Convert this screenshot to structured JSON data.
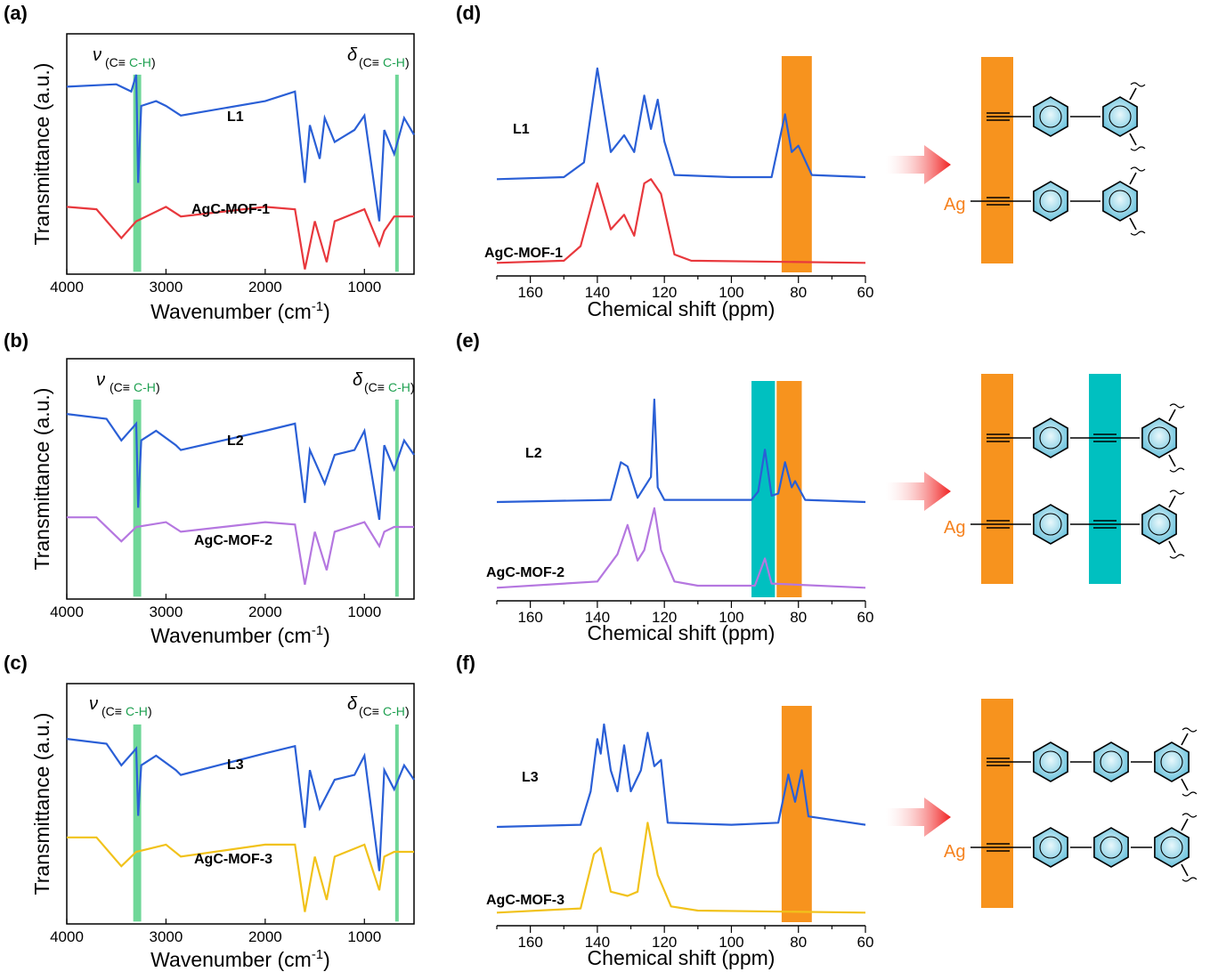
{
  "panels": {
    "a": "(a)",
    "b": "(b)",
    "c": "(c)",
    "d": "(d)",
    "e": "(e)",
    "f": "(f)"
  },
  "ir_axis": {
    "xlabel": "Wavenumber (cm",
    "xlabel_sup": "-1",
    "xlabel_end": ")",
    "ylabel": "Transmittance (a.u.)",
    "ticks": [
      "4000",
      "3000",
      "2000",
      "1000"
    ]
  },
  "nmr_axis": {
    "xlabel": "Chemical shift (ppm)",
    "ticks": [
      "160",
      "140",
      "120",
      "100",
      "80",
      "60"
    ]
  },
  "annotations": {
    "nu": "ν",
    "delta": "δ",
    "sub_pre": "(C≡",
    "sub_green": "C-H",
    "sub_post": ")",
    "ag": "Ag"
  },
  "colors": {
    "ligand": "#2a5fd6",
    "mof1": "#e8383d",
    "mof2": "#b577e0",
    "mof3": "#f1c21b",
    "ir_band": "#5fd38d",
    "orange_band": "#f7931e",
    "cyan_band": "#00c0c0",
    "arrow": "#f03030",
    "ring_fill": "#8fd0e4"
  },
  "chart_data": [
    {
      "type": "line",
      "panel": "(a)",
      "xlabel": "Wavenumber (cm-1)",
      "ylabel": "Transmittance (a.u.)",
      "xlim": [
        4000,
        500
      ],
      "x_reversed": true,
      "highlight_bands": [
        [
          3330,
          3250
        ],
        [
          690,
          660
        ]
      ],
      "series": [
        {
          "name": "L1",
          "points": [
            [
              4000,
              0.78
            ],
            [
              3500,
              0.79
            ],
            [
              3350,
              0.76
            ],
            [
              3300,
              0.83
            ],
            [
              3280,
              0.38
            ],
            [
              3250,
              0.7
            ],
            [
              3100,
              0.72
            ],
            [
              3000,
              0.7
            ],
            [
              2850,
              0.66
            ],
            [
              2000,
              0.72
            ],
            [
              1700,
              0.76
            ],
            [
              1600,
              0.38
            ],
            [
              1550,
              0.62
            ],
            [
              1450,
              0.48
            ],
            [
              1400,
              0.65
            ],
            [
              1300,
              0.55
            ],
            [
              1100,
              0.6
            ],
            [
              1000,
              0.66
            ],
            [
              850,
              0.22
            ],
            [
              800,
              0.6
            ],
            [
              700,
              0.5
            ],
            [
              600,
              0.65
            ],
            [
              500,
              0.58
            ]
          ]
        },
        {
          "name": "AgC-MOF-1",
          "points": [
            [
              4000,
              0.28
            ],
            [
              3700,
              0.27
            ],
            [
              3450,
              0.15
            ],
            [
              3300,
              0.22
            ],
            [
              3000,
              0.28
            ],
            [
              2850,
              0.24
            ],
            [
              2000,
              0.28
            ],
            [
              1700,
              0.27
            ],
            [
              1600,
              0.02
            ],
            [
              1500,
              0.22
            ],
            [
              1380,
              0.05
            ],
            [
              1300,
              0.22
            ],
            [
              1000,
              0.27
            ],
            [
              850,
              0.12
            ],
            [
              800,
              0.18
            ],
            [
              700,
              0.24
            ],
            [
              500,
              0.24
            ]
          ]
        }
      ]
    },
    {
      "type": "line",
      "panel": "(b)",
      "xlabel": "Wavenumber (cm-1)",
      "ylabel": "Transmittance (a.u.)",
      "xlim": [
        4000,
        500
      ],
      "x_reversed": true,
      "highlight_bands": [
        [
          3330,
          3250
        ],
        [
          690,
          660
        ]
      ],
      "series": [
        {
          "name": "L2",
          "points": [
            [
              4000,
              0.77
            ],
            [
              3600,
              0.75
            ],
            [
              3450,
              0.66
            ],
            [
              3300,
              0.73
            ],
            [
              3280,
              0.38
            ],
            [
              3250,
              0.66
            ],
            [
              3100,
              0.7
            ],
            [
              2900,
              0.64
            ],
            [
              2850,
              0.62
            ],
            [
              2000,
              0.7
            ],
            [
              1700,
              0.73
            ],
            [
              1600,
              0.4
            ],
            [
              1550,
              0.62
            ],
            [
              1400,
              0.48
            ],
            [
              1300,
              0.6
            ],
            [
              1100,
              0.62
            ],
            [
              1000,
              0.7
            ],
            [
              850,
              0.33
            ],
            [
              800,
              0.64
            ],
            [
              700,
              0.54
            ],
            [
              600,
              0.66
            ],
            [
              500,
              0.6
            ]
          ]
        },
        {
          "name": "AgC-MOF-2",
          "points": [
            [
              4000,
              0.34
            ],
            [
              3700,
              0.34
            ],
            [
              3450,
              0.24
            ],
            [
              3300,
              0.3
            ],
            [
              3000,
              0.32
            ],
            [
              2850,
              0.28
            ],
            [
              2000,
              0.32
            ],
            [
              1700,
              0.31
            ],
            [
              1600,
              0.06
            ],
            [
              1500,
              0.28
            ],
            [
              1380,
              0.12
            ],
            [
              1300,
              0.28
            ],
            [
              1000,
              0.32
            ],
            [
              850,
              0.22
            ],
            [
              800,
              0.28
            ],
            [
              700,
              0.3
            ],
            [
              500,
              0.3
            ]
          ]
        }
      ]
    },
    {
      "type": "line",
      "panel": "(c)",
      "xlabel": "Wavenumber (cm-1)",
      "ylabel": "Transmittance (a.u.)",
      "xlim": [
        4000,
        500
      ],
      "x_reversed": true,
      "highlight_bands": [
        [
          3330,
          3250
        ],
        [
          690,
          660
        ]
      ],
      "series": [
        {
          "name": "L3",
          "points": [
            [
              4000,
              0.77
            ],
            [
              3600,
              0.75
            ],
            [
              3450,
              0.66
            ],
            [
              3300,
              0.73
            ],
            [
              3280,
              0.45
            ],
            [
              3250,
              0.66
            ],
            [
              3100,
              0.7
            ],
            [
              2900,
              0.64
            ],
            [
              2850,
              0.62
            ],
            [
              2000,
              0.71
            ],
            [
              1700,
              0.74
            ],
            [
              1600,
              0.4
            ],
            [
              1550,
              0.64
            ],
            [
              1450,
              0.48
            ],
            [
              1300,
              0.6
            ],
            [
              1100,
              0.62
            ],
            [
              1000,
              0.7
            ],
            [
              850,
              0.22
            ],
            [
              800,
              0.64
            ],
            [
              700,
              0.56
            ],
            [
              600,
              0.66
            ],
            [
              500,
              0.6
            ]
          ]
        },
        {
          "name": "AgC-MOF-3",
          "points": [
            [
              4000,
              0.36
            ],
            [
              3700,
              0.36
            ],
            [
              3450,
              0.24
            ],
            [
              3300,
              0.3
            ],
            [
              3000,
              0.33
            ],
            [
              2850,
              0.28
            ],
            [
              2000,
              0.33
            ],
            [
              1700,
              0.33
            ],
            [
              1600,
              0.05
            ],
            [
              1500,
              0.28
            ],
            [
              1380,
              0.1
            ],
            [
              1300,
              0.28
            ],
            [
              1000,
              0.33
            ],
            [
              850,
              0.14
            ],
            [
              800,
              0.28
            ],
            [
              700,
              0.3
            ],
            [
              500,
              0.3
            ]
          ]
        }
      ]
    },
    {
      "type": "line",
      "panel": "(d)",
      "xlabel": "Chemical shift (ppm)",
      "xlim": [
        170,
        60
      ],
      "x_reversed": true,
      "highlight_bands": [
        [
          85,
          76
        ]
      ],
      "series": [
        {
          "name": "L1",
          "points": [
            [
              170,
              0.42
            ],
            [
              150,
              0.43
            ],
            [
              144,
              0.5
            ],
            [
              140,
              0.95
            ],
            [
              136,
              0.55
            ],
            [
              132,
              0.63
            ],
            [
              129,
              0.55
            ],
            [
              126,
              0.82
            ],
            [
              124,
              0.66
            ],
            [
              122,
              0.8
            ],
            [
              120,
              0.6
            ],
            [
              117,
              0.44
            ],
            [
              100,
              0.43
            ],
            [
              88,
              0.43
            ],
            [
              84,
              0.73
            ],
            [
              82,
              0.55
            ],
            [
              80,
              0.58
            ],
            [
              76,
              0.44
            ],
            [
              60,
              0.43
            ]
          ]
        },
        {
          "name": "AgC-MOF-1",
          "points": [
            [
              170,
              0.02
            ],
            [
              150,
              0.03
            ],
            [
              145,
              0.1
            ],
            [
              140,
              0.4
            ],
            [
              136,
              0.18
            ],
            [
              132,
              0.25
            ],
            [
              129,
              0.15
            ],
            [
              126,
              0.4
            ],
            [
              124,
              0.42
            ],
            [
              121,
              0.35
            ],
            [
              117,
              0.06
            ],
            [
              112,
              0.03
            ],
            [
              60,
              0.02
            ]
          ]
        }
      ]
    },
    {
      "type": "line",
      "panel": "(e)",
      "xlabel": "Chemical shift (ppm)",
      "xlim": [
        170,
        60
      ],
      "x_reversed": true,
      "highlight_bands": [
        [
          94,
          87
        ],
        [
          86.5,
          79
        ]
      ],
      "series": [
        {
          "name": "L2",
          "points": [
            [
              170,
              0.43
            ],
            [
              136,
              0.44
            ],
            [
              133,
              0.62
            ],
            [
              131,
              0.6
            ],
            [
              128,
              0.45
            ],
            [
              124,
              0.55
            ],
            [
              123,
              0.92
            ],
            [
              122,
              0.5
            ],
            [
              120,
              0.44
            ],
            [
              94,
              0.44
            ],
            [
              92,
              0.48
            ],
            [
              90,
              0.68
            ],
            [
              88,
              0.46
            ],
            [
              86,
              0.47
            ],
            [
              84,
              0.62
            ],
            [
              82,
              0.5
            ],
            [
              81,
              0.53
            ],
            [
              78,
              0.44
            ],
            [
              60,
              0.43
            ]
          ]
        },
        {
          "name": "AgC-MOF-2",
          "points": [
            [
              170,
              0.02
            ],
            [
              140,
              0.05
            ],
            [
              134,
              0.18
            ],
            [
              131,
              0.32
            ],
            [
              128,
              0.15
            ],
            [
              126,
              0.2
            ],
            [
              123,
              0.4
            ],
            [
              121,
              0.2
            ],
            [
              117,
              0.05
            ],
            [
              110,
              0.03
            ],
            [
              93,
              0.03
            ],
            [
              90,
              0.16
            ],
            [
              88,
              0.04
            ],
            [
              60,
              0.02
            ]
          ]
        }
      ]
    },
    {
      "type": "line",
      "panel": "(f)",
      "xlabel": "Chemical shift (ppm)",
      "xlim": [
        170,
        60
      ],
      "x_reversed": true,
      "highlight_bands": [
        [
          85,
          76
        ]
      ],
      "series": [
        {
          "name": "L3",
          "points": [
            [
              170,
              0.43
            ],
            [
              145,
              0.44
            ],
            [
              142,
              0.6
            ],
            [
              140,
              0.85
            ],
            [
              139,
              0.78
            ],
            [
              138,
              0.92
            ],
            [
              136,
              0.7
            ],
            [
              134,
              0.6
            ],
            [
              132,
              0.82
            ],
            [
              130,
              0.6
            ],
            [
              127,
              0.7
            ],
            [
              125,
              0.88
            ],
            [
              123,
              0.72
            ],
            [
              121,
              0.75
            ],
            [
              119,
              0.45
            ],
            [
              100,
              0.44
            ],
            [
              86,
              0.45
            ],
            [
              83,
              0.68
            ],
            [
              81,
              0.55
            ],
            [
              79,
              0.7
            ],
            [
              77,
              0.48
            ],
            [
              60,
              0.44
            ]
          ]
        },
        {
          "name": "AgC-MOF-3",
          "points": [
            [
              170,
              0.02
            ],
            [
              145,
              0.04
            ],
            [
              141,
              0.3
            ],
            [
              139,
              0.33
            ],
            [
              136,
              0.12
            ],
            [
              131,
              0.1
            ],
            [
              128,
              0.12
            ],
            [
              125,
              0.45
            ],
            [
              122,
              0.2
            ],
            [
              118,
              0.05
            ],
            [
              110,
              0.03
            ],
            [
              60,
              0.02
            ]
          ]
        }
      ]
    }
  ]
}
